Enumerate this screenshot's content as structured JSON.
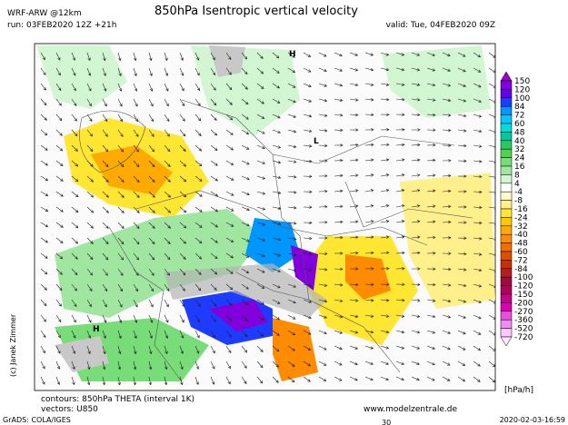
{
  "header": {
    "model": "WRF-ARW @12km",
    "run": "run: 03FEB2020 12Z +21h",
    "title": "850hPa Isentropic vertical velocity",
    "valid": "valid: Tue, 04FEB2020 09Z"
  },
  "map": {
    "pressure_labels": [
      "H",
      "L",
      "H"
    ],
    "copyright": "(c) Janek Zimmer"
  },
  "colorbar": {
    "labels": [
      "150",
      "120",
      "100",
      "84",
      "72",
      "60",
      "48",
      "40",
      "32",
      "24",
      "16",
      "8",
      "4",
      "-4",
      "-8",
      "-16",
      "-24",
      "-32",
      "-40",
      "-48",
      "-60",
      "-72",
      "-84",
      "-100",
      "-120",
      "-150",
      "-200",
      "-270",
      "-360",
      "-520",
      "-720"
    ],
    "colors": [
      "#a000c8",
      "#8200dc",
      "#6400f0",
      "#1e3cff",
      "#0096ff",
      "#00c8ff",
      "#00dcdc",
      "#00c8a0",
      "#28c864",
      "#50d250",
      "#78dc78",
      "#a0e6a0",
      "#d2f5d2",
      "#ffffff",
      "#fffac8",
      "#fff08c",
      "#ffe632",
      "#ffc800",
      "#ffaa00",
      "#ff8c00",
      "#f06e00",
      "#dc5000",
      "#c83200",
      "#b41e1e",
      "#a00a3c",
      "#b4005a",
      "#c8008c",
      "#dc00b4",
      "#e650dc",
      "#f08cf0",
      "#fac8fa",
      "#ffe6ff"
    ],
    "unit": "[hPa/h]"
  },
  "footer": {
    "contours": "contours: 850hPa THETA (interval 1K)",
    "vectors": "vectors: U850",
    "website": "www.modelzentrale.de",
    "software": "GrADS: COLA/IGES",
    "timestamp": "2020-02-03-16:59",
    "page": "30"
  }
}
